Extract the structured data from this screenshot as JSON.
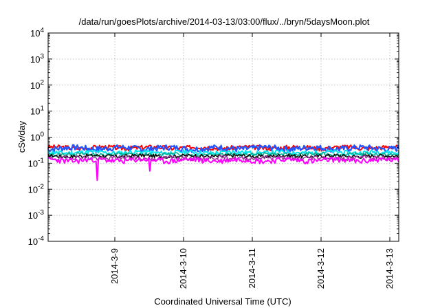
{
  "chart_data": {
    "type": "line",
    "title": "/data/run/goesPlots/archive/2014-03-13/03:00/flux/../bryn/5daysMoon.plot",
    "xlabel": "Coordinated Universal Time (UTC)",
    "ylabel": "cSv/day",
    "y_scale": "log",
    "ylim": [
      0.0001,
      10000
    ],
    "xlim_days": [
      -0.97,
      4.13
    ],
    "grid": true,
    "legend": "none",
    "x_ticks": [
      {
        "label": "2014-3-9",
        "day": 0
      },
      {
        "label": "2014-3-10",
        "day": 1
      },
      {
        "label": "2014-3-11",
        "day": 2
      },
      {
        "label": "2014-3-12",
        "day": 3
      },
      {
        "label": "2014-3-13",
        "day": 4
      }
    ],
    "y_ticks": [
      {
        "base": "10",
        "exp": "-4",
        "value": 0.0001
      },
      {
        "base": "10",
        "exp": "-3",
        "value": 0.001
      },
      {
        "base": "10",
        "exp": "-2",
        "value": 0.01
      },
      {
        "base": "10",
        "exp": "-1",
        "value": 0.1
      },
      {
        "base": "10",
        "exp": "0",
        "value": 1
      },
      {
        "base": "10",
        "exp": "1",
        "value": 10
      },
      {
        "base": "10",
        "exp": "2",
        "value": 100
      },
      {
        "base": "10",
        "exp": "3",
        "value": 1000
      },
      {
        "base": "10",
        "exp": "4",
        "value": 10000
      }
    ],
    "series": [
      {
        "color": "#ff0000",
        "base": 0.4,
        "amp": 0.08,
        "seed": 3,
        "dips": [],
        "width": 2
      },
      {
        "color": "#2255ff",
        "base": 0.38,
        "amp": 0.1,
        "seed": 7,
        "dips": [],
        "width": 2.2
      },
      {
        "color": "#00e5ee",
        "base": 0.26,
        "amp": 0.05,
        "seed": 11,
        "dips": [],
        "width": 2
      },
      {
        "color": "#00aa88",
        "base": 0.22,
        "amp": 0.03,
        "seed": 13,
        "dips": [],
        "width": 1.5
      },
      {
        "color": "#000000",
        "base": 0.19,
        "amp": 0.03,
        "seed": 17,
        "dips": [],
        "width": 1.5
      },
      {
        "color": "#993399",
        "base": 0.16,
        "amp": 0.03,
        "seed": 19,
        "dips": [],
        "width": 1.5
      },
      {
        "color": "#ff00ff",
        "base": 0.13,
        "amp": 0.03,
        "seed": 23,
        "dips": [
          {
            "day": -0.26,
            "value": 0.022
          },
          {
            "day": 0.51,
            "value": 0.05
          }
        ],
        "width": 2
      }
    ]
  }
}
